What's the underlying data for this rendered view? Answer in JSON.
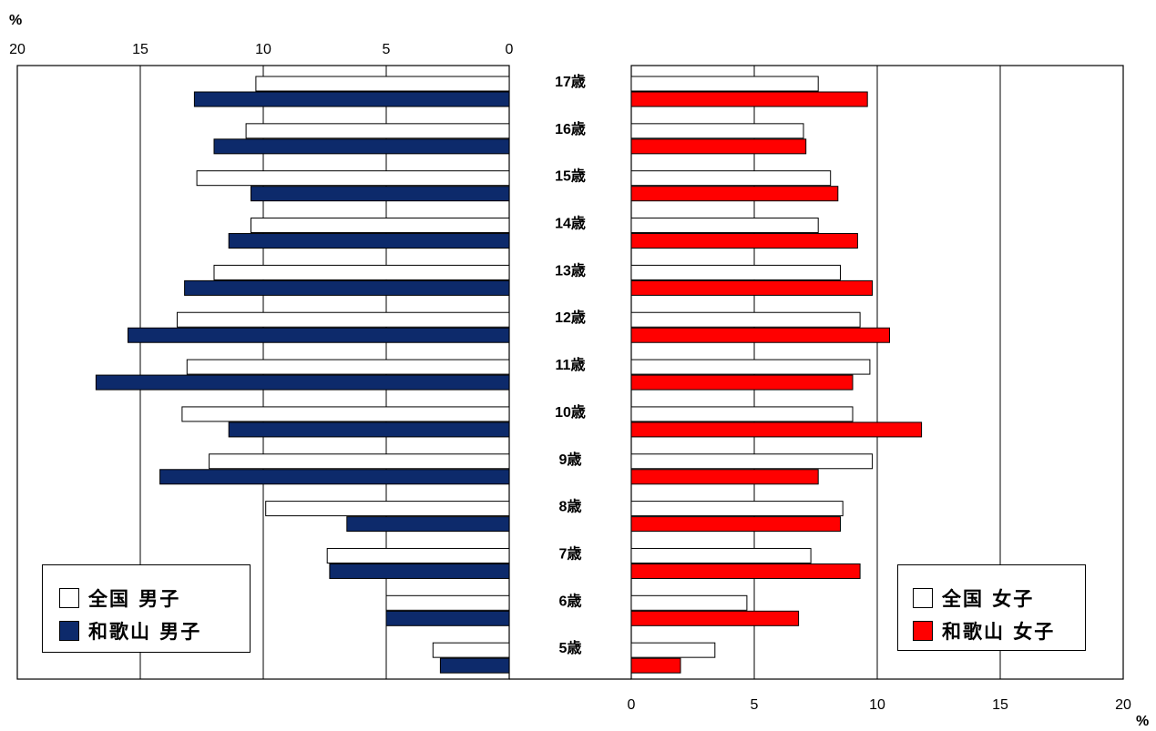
{
  "chart_data": {
    "type": "bar",
    "orientation": "horizontal-pyramid",
    "unit_label": "%",
    "categories": [
      "17歳",
      "16歳",
      "15歳",
      "14歳",
      "13歳",
      "12歳",
      "11歳",
      "10歳",
      "9歳",
      "8歳",
      "7歳",
      "6歳",
      "5歳"
    ],
    "left_axis": {
      "ticks": [
        "20",
        "15",
        "10",
        "5",
        "0"
      ],
      "range": [
        0,
        20
      ]
    },
    "right_axis": {
      "ticks": [
        "0",
        "5",
        "10",
        "15",
        "20"
      ],
      "range": [
        0,
        20
      ]
    },
    "grid": true,
    "series": [
      {
        "name": "全国 男子",
        "side": "left",
        "color": "#ffffff",
        "values": [
          10.3,
          10.7,
          12.7,
          10.5,
          12.0,
          13.5,
          13.1,
          13.3,
          12.2,
          9.9,
          7.4,
          5.0,
          3.1
        ]
      },
      {
        "name": "和歌山 男子",
        "side": "left",
        "color": "#0d2a6b",
        "values": [
          12.8,
          12.0,
          10.5,
          11.4,
          13.2,
          15.5,
          16.8,
          11.4,
          14.2,
          6.6,
          7.3,
          5.0,
          2.8
        ]
      },
      {
        "name": "全国 女子",
        "side": "right",
        "color": "#ffffff",
        "values": [
          7.6,
          7.0,
          8.1,
          7.6,
          8.5,
          9.3,
          9.7,
          9.0,
          9.8,
          8.6,
          7.3,
          4.7,
          3.4
        ]
      },
      {
        "name": "和歌山 女子",
        "side": "right",
        "color": "#ff0000",
        "values": [
          9.6,
          7.1,
          8.4,
          9.2,
          9.8,
          10.5,
          9.0,
          11.8,
          7.6,
          8.5,
          9.3,
          6.8,
          2.0
        ]
      }
    ],
    "legend_placement": [
      "bottom-left",
      "bottom-right"
    ]
  },
  "legend_left": [
    {
      "label": "全国 男子",
      "color": "#ffffff"
    },
    {
      "label": "和歌山 男子",
      "color": "#0d2a6b"
    }
  ],
  "legend_right": [
    {
      "label": "全国 女子",
      "color": "#ffffff"
    },
    {
      "label": "和歌山 女子",
      "color": "#ff0000"
    }
  ]
}
